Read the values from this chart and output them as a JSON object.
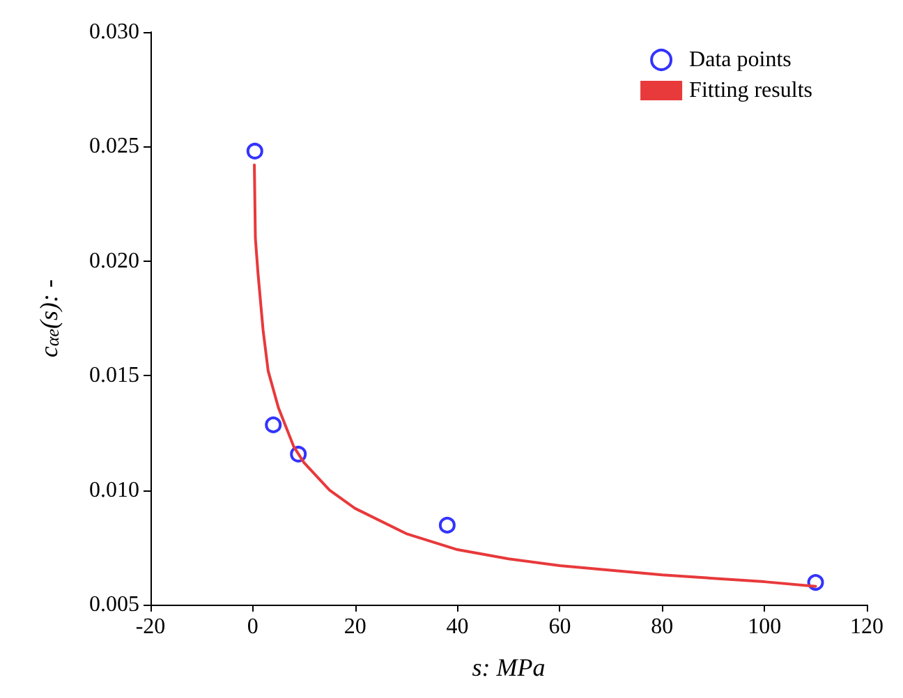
{
  "chart_data": {
    "type": "scatter",
    "xlabel": "s: MPa",
    "ylabel": "c$_{αe}$(s): -",
    "xlim": [
      -20,
      120
    ],
    "xticks": [
      -20,
      0,
      20,
      40,
      60,
      80,
      100,
      120
    ],
    "ylim": [
      0.005,
      0.03
    ],
    "yticks": [
      {
        "value": 0.005,
        "label": "0.005"
      },
      {
        "value": 0.01,
        "label": "0.010"
      },
      {
        "value": 0.015,
        "label": "0.015"
      },
      {
        "value": 0.02,
        "label": "0.020"
      },
      {
        "value": 0.025,
        "label": "0.025"
      },
      {
        "value": 0.03,
        "label": "0.030"
      }
    ],
    "grid": false,
    "legend": "top right",
    "series": [
      {
        "name": "Data points",
        "type": "scatter",
        "marker": "circle",
        "color": "#0000ff",
        "x": [
          0.4,
          4,
          8.9,
          38,
          110
        ],
        "values": [
          0.0248,
          0.01285,
          0.01157,
          0.00847,
          0.00597
        ]
      },
      {
        "name": "Fitting results",
        "type": "line",
        "marker": "none",
        "line_style": "solid",
        "color": "#e8393b",
        "x": [
          0.3,
          0.5,
          1,
          2,
          3,
          5,
          8,
          10,
          15,
          20,
          30,
          40,
          50,
          60,
          80,
          100,
          110
        ],
        "values": [
          0.0242,
          0.021,
          0.0195,
          0.017,
          0.0152,
          0.0136,
          0.0119,
          0.0112,
          0.01,
          0.0092,
          0.0081,
          0.0074,
          0.007,
          0.0067,
          0.0063,
          0.006,
          0.0058
        ]
      }
    ]
  }
}
